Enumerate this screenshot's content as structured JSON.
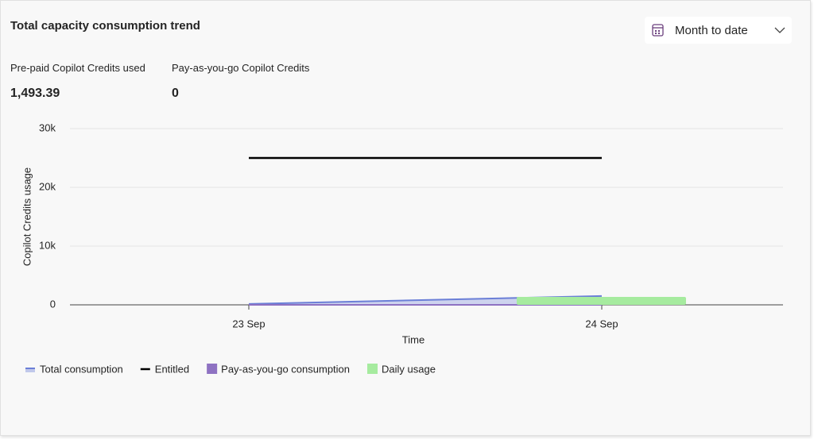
{
  "header": {
    "title": "Total capacity consumption trend",
    "date_filter": "Month to date"
  },
  "kpis": [
    {
      "label": "Pre-paid Copilot Credits used",
      "value": "1,493.39"
    },
    {
      "label": "Pay-as-you-go Copilot Credits",
      "value": "0"
    }
  ],
  "chart_data": {
    "type": "line",
    "xlabel": "Time",
    "ylabel": "Copilot Credits usage",
    "categories": [
      "23 Sep",
      "24 Sep"
    ],
    "series": [
      {
        "name": "Total consumption",
        "color": "#6b7fd7",
        "mark": "area",
        "values": [
          150,
          1500
        ]
      },
      {
        "name": "Entitled",
        "color": "#000000",
        "mark": "line",
        "values": [
          25000,
          25000
        ]
      },
      {
        "name": "Pay-as-you-go consumption",
        "color": "#8e72c2",
        "mark": "area",
        "values": [
          0,
          0
        ]
      },
      {
        "name": "Daily usage",
        "color": "#a6eb9f",
        "mark": "bar",
        "values": [
          null,
          1350
        ]
      }
    ],
    "ylim": [
      0,
      30000
    ],
    "yticks": [
      0,
      {
        "value": 10000,
        "label": "10k"
      },
      {
        "value": 20000,
        "label": "20k"
      },
      {
        "value": 30000,
        "label": "30k"
      }
    ],
    "grid": true
  }
}
